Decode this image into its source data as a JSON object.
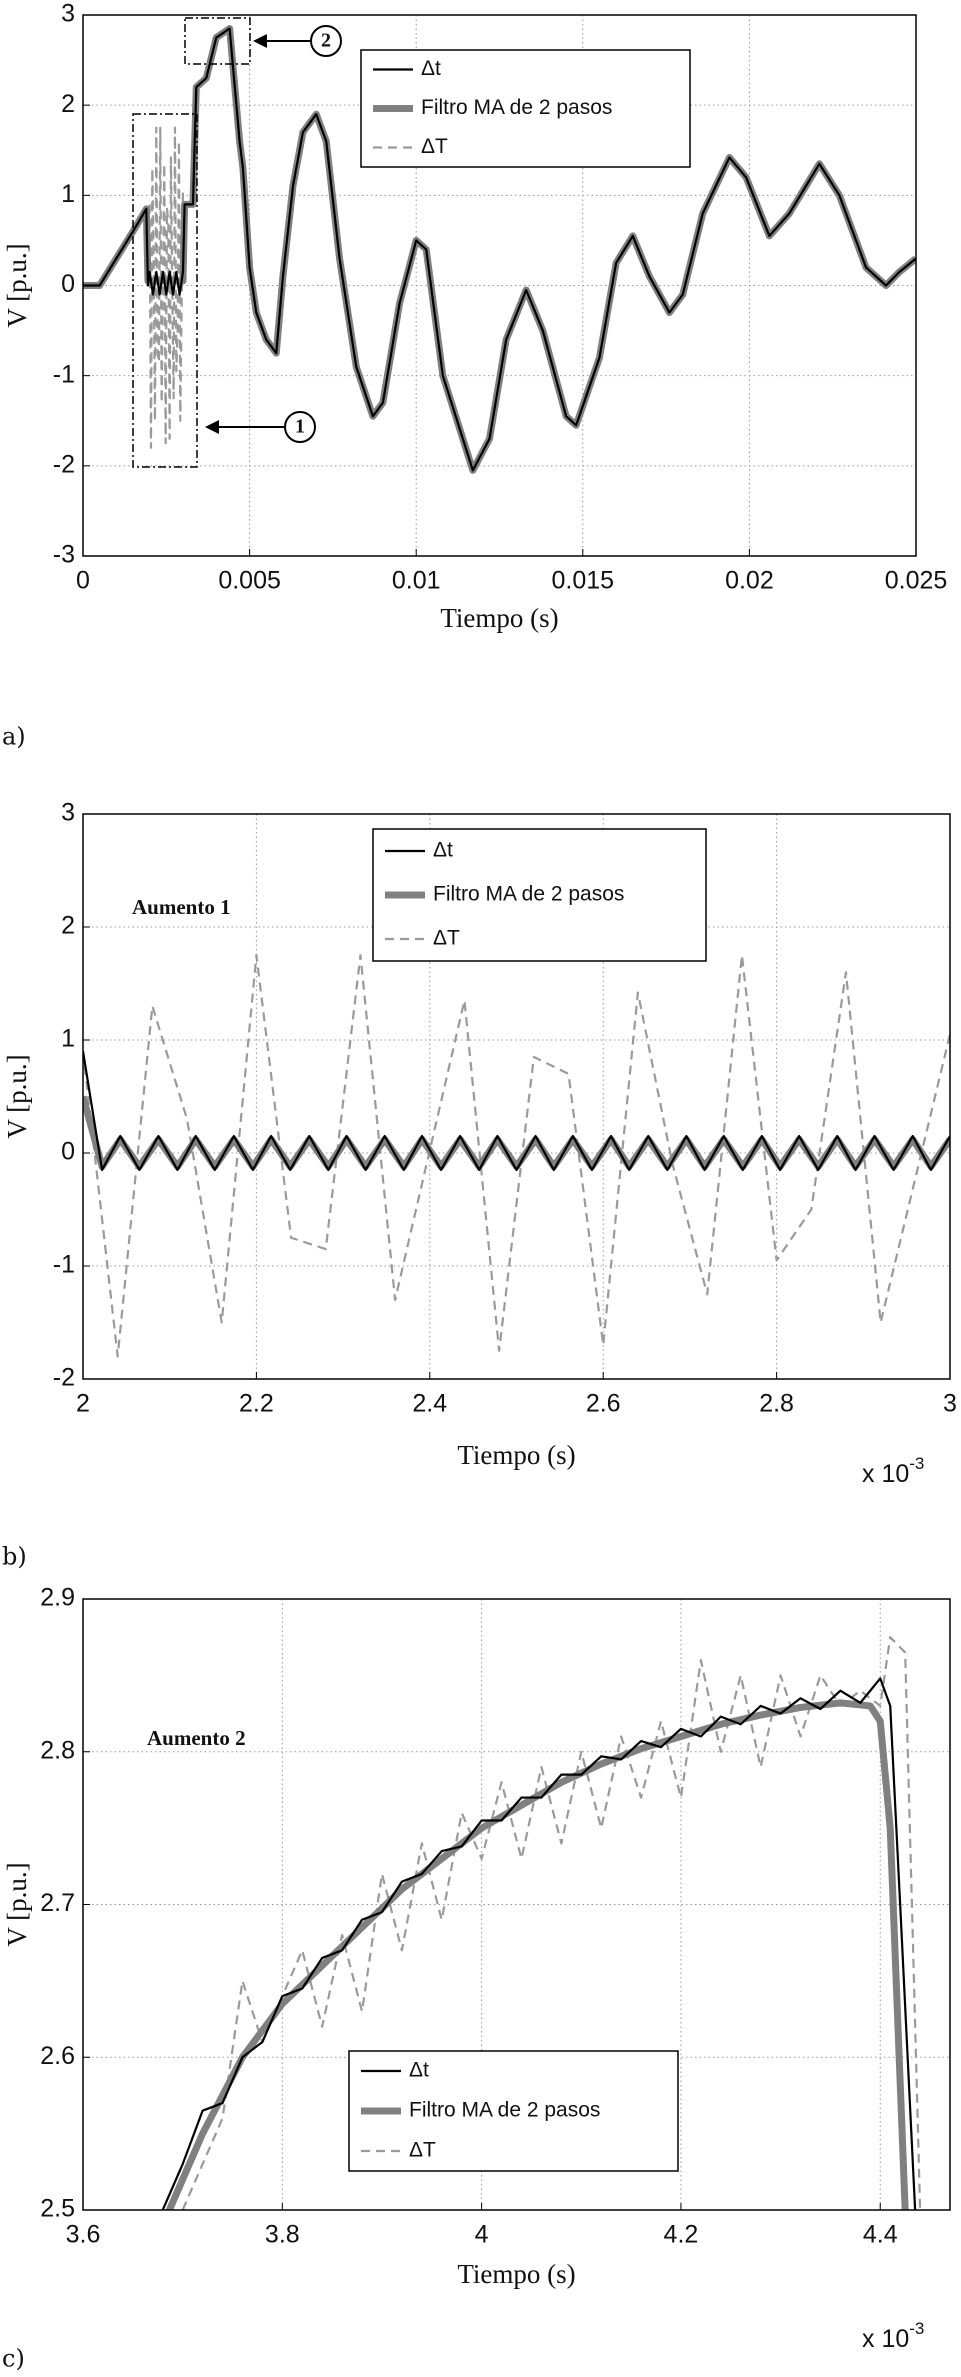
{
  "chart_data": [
    {
      "type": "line",
      "panel_label": "a)",
      "xlabel": "Tiempo  (s)",
      "ylabel": "V [p.u.]",
      "xlim": [
        0,
        0.025
      ],
      "ylim": [
        -3,
        3
      ],
      "xticks": [
        0,
        0.005,
        0.01,
        0.015,
        0.02,
        0.025
      ],
      "yticks": [
        -3,
        -2,
        -1,
        0,
        1,
        2,
        3
      ],
      "grid": true,
      "annotations": [
        "1",
        "2"
      ],
      "series": [
        {
          "name": "Δt",
          "color": "#000000",
          "style": "solid",
          "x": [
            0,
            0.0005,
            0.001,
            0.0015,
            0.0019,
            0.00195,
            0.002,
            0.0021,
            0.0022,
            0.0023,
            0.0024,
            0.0025,
            0.0026,
            0.0027,
            0.0028,
            0.0029,
            0.003,
            0.00305,
            0.0033,
            0.0034,
            0.0037,
            0.004,
            0.0044,
            0.0047,
            0.0048,
            0.005,
            0.0052,
            0.0055,
            0.0058,
            0.006,
            0.0063,
            0.0066,
            0.007,
            0.0073,
            0.0077,
            0.0082,
            0.0087,
            0.009,
            0.0095,
            0.01,
            0.0103,
            0.0108,
            0.0117,
            0.0122,
            0.0127,
            0.0133,
            0.0138,
            0.0145,
            0.0148,
            0.0155,
            0.016,
            0.0165,
            0.017,
            0.0176,
            0.018,
            0.0186,
            0.0194,
            0.0199,
            0.0206,
            0.0212,
            0.0221,
            0.0227,
            0.0235,
            0.0241,
            0.0245,
            0.025
          ],
          "values": [
            0,
            0,
            0.3,
            0.6,
            0.85,
            0.0,
            0.15,
            -0.1,
            0.15,
            -0.1,
            0.15,
            -0.1,
            0.15,
            -0.1,
            0.15,
            -0.1,
            0.15,
            0.9,
            0.9,
            2.2,
            2.3,
            2.75,
            2.85,
            1.6,
            1.3,
            0.2,
            -0.3,
            -0.6,
            -0.75,
            0.1,
            1.1,
            1.7,
            1.9,
            1.6,
            0.3,
            -0.9,
            -1.45,
            -1.3,
            -0.2,
            0.5,
            0.4,
            -1.0,
            -2.05,
            -1.7,
            -0.6,
            -0.05,
            -0.5,
            -1.45,
            -1.55,
            -0.8,
            0.25,
            0.55,
            0.1,
            -0.3,
            -0.1,
            0.8,
            1.42,
            1.2,
            0.55,
            0.8,
            1.35,
            1.0,
            0.2,
            0.0,
            0.15,
            0.3
          ]
        },
        {
          "name": "Filtro MA de 2 pasos",
          "color": "#808080",
          "style": "thick",
          "x": [
            0,
            0.0005,
            0.001,
            0.0015,
            0.0019,
            0.00195,
            0.003,
            0.00305,
            0.0033,
            0.0034,
            0.0037,
            0.004,
            0.0044,
            0.0047,
            0.0048,
            0.005,
            0.0052,
            0.0055,
            0.0058,
            0.006,
            0.0063,
            0.0066,
            0.007,
            0.0073,
            0.0077,
            0.0082,
            0.0087,
            0.009,
            0.0095,
            0.01,
            0.0103,
            0.0108,
            0.0117,
            0.0122,
            0.0127,
            0.0133,
            0.0138,
            0.0145,
            0.0148,
            0.0155,
            0.016,
            0.0165,
            0.017,
            0.0176,
            0.018,
            0.0186,
            0.0194,
            0.0199,
            0.0206,
            0.0212,
            0.0221,
            0.0227,
            0.0235,
            0.0241,
            0.0245,
            0.025
          ],
          "values": [
            0,
            0,
            0.3,
            0.6,
            0.85,
            0.05,
            0.05,
            0.9,
            0.9,
            2.2,
            2.3,
            2.75,
            2.85,
            1.6,
            1.3,
            0.2,
            -0.3,
            -0.6,
            -0.75,
            0.1,
            1.1,
            1.7,
            1.9,
            1.6,
            0.3,
            -0.9,
            -1.45,
            -1.3,
            -0.2,
            0.5,
            0.4,
            -1.0,
            -2.05,
            -1.7,
            -0.6,
            -0.05,
            -0.5,
            -1.45,
            -1.55,
            -0.8,
            0.25,
            0.55,
            0.1,
            -0.3,
            -0.1,
            0.8,
            1.42,
            1.2,
            0.55,
            0.8,
            1.35,
            1.0,
            0.2,
            0.0,
            0.15,
            0.3
          ]
        },
        {
          "name": "ΔT",
          "color": "#9a9a9a",
          "style": "dashed",
          "x": [
            0.002,
            0.00204,
            0.00208,
            0.00212,
            0.00216,
            0.0022,
            0.00224,
            0.00228,
            0.00232,
            0.00236,
            0.00244,
            0.00248,
            0.00252,
            0.00256,
            0.0026,
            0.00264,
            0.00268,
            0.00272,
            0.00276,
            0.0028,
            0.00284,
            0.00288,
            0.00292,
            0.003
          ],
          "values": [
            0.9,
            -1.8,
            1.3,
            0.3,
            -1.5,
            1.75,
            -0.75,
            -0.85,
            1.75,
            -1.3,
            1.35,
            -1.75,
            0.85,
            0.7,
            -1.7,
            1.42,
            -0.1,
            -1.25,
            1.75,
            -0.95,
            -0.5,
            1.6,
            -1.5,
            1.05
          ]
        }
      ]
    },
    {
      "type": "line",
      "panel_label": "b)",
      "xlabel": "Tiempo  (s)",
      "ylabel": "V [p.u.]",
      "note": "Aumento 1",
      "x_multiplier": {
        "base": "x 10",
        "exponent": "-3"
      },
      "xlim": [
        2,
        3
      ],
      "ylim": [
        -2,
        3
      ],
      "xticks": [
        2,
        2.2,
        2.4,
        2.6,
        2.8,
        3
      ],
      "yticks": [
        -2,
        -1,
        0,
        1,
        2,
        3
      ],
      "grid": true,
      "series": [
        {
          "name": "Δt",
          "color": "#000000",
          "style": "solid",
          "x": [
            2,
            2.022,
            2.043,
            2.065,
            2.087,
            2.109,
            2.13,
            2.152,
            2.174,
            2.196,
            2.217,
            2.239,
            2.261,
            2.283,
            2.304,
            2.326,
            2.348,
            2.37,
            2.391,
            2.413,
            2.435,
            2.457,
            2.478,
            2.5,
            2.522,
            2.543,
            2.565,
            2.587,
            2.609,
            2.63,
            2.652,
            2.674,
            2.696,
            2.717,
            2.739,
            2.761,
            2.783,
            2.804,
            2.826,
            2.848,
            2.87,
            2.891,
            2.913,
            2.935,
            2.957,
            2.978,
            3.0
          ],
          "values": [
            0.9,
            -0.15,
            0.15,
            -0.15,
            0.15,
            -0.15,
            0.15,
            -0.15,
            0.15,
            -0.15,
            0.15,
            -0.15,
            0.15,
            -0.15,
            0.15,
            -0.15,
            0.15,
            -0.15,
            0.15,
            -0.15,
            0.15,
            -0.15,
            0.15,
            -0.15,
            0.15,
            -0.15,
            0.15,
            -0.15,
            0.15,
            -0.15,
            0.15,
            -0.15,
            0.15,
            -0.15,
            0.15,
            -0.15,
            0.15,
            -0.15,
            0.15,
            -0.15,
            0.15,
            -0.15,
            0.15,
            -0.15,
            0.15,
            -0.15,
            0.15
          ]
        },
        {
          "name": "Filtro MA de 2 pasos",
          "color": "#808080",
          "style": "thick",
          "x": [
            2,
            2.022,
            2.043,
            2.065,
            2.087,
            2.109,
            2.13,
            2.152,
            2.174,
            2.196,
            2.217,
            2.239,
            2.261,
            2.283,
            2.304,
            2.326,
            2.348,
            2.37,
            2.391,
            2.413,
            2.435,
            2.457,
            2.478,
            2.5,
            2.522,
            2.543,
            2.565,
            2.587,
            2.609,
            2.63,
            2.652,
            2.674,
            2.696,
            2.717,
            2.739,
            2.761,
            2.783,
            2.804,
            2.826,
            2.848,
            2.87,
            2.891,
            2.913,
            2.935,
            2.957,
            2.978,
            3.0
          ],
          "values": [
            0.5,
            -0.12,
            0.12,
            -0.12,
            0.12,
            -0.12,
            0.12,
            -0.12,
            0.12,
            -0.12,
            0.12,
            -0.12,
            0.12,
            -0.12,
            0.12,
            -0.12,
            0.12,
            -0.12,
            0.12,
            -0.12,
            0.12,
            -0.12,
            0.12,
            -0.12,
            0.12,
            -0.12,
            0.12,
            -0.12,
            0.12,
            -0.12,
            0.12,
            -0.12,
            0.12,
            -0.12,
            0.12,
            -0.12,
            0.12,
            -0.12,
            0.12,
            -0.12,
            0.12,
            -0.12,
            0.12,
            -0.12,
            0.12,
            -0.12,
            0.12
          ]
        },
        {
          "name": "ΔT",
          "color": "#9a9a9a",
          "style": "dashed",
          "x": [
            2,
            2.04,
            2.08,
            2.12,
            2.16,
            2.2,
            2.24,
            2.28,
            2.32,
            2.36,
            2.44,
            2.48,
            2.52,
            2.56,
            2.6,
            2.64,
            2.68,
            2.72,
            2.76,
            2.8,
            2.84,
            2.88,
            2.92,
            3
          ],
          "values": [
            0.9,
            -1.8,
            1.3,
            0.3,
            -1.5,
            1.75,
            -0.75,
            -0.85,
            1.75,
            -1.3,
            1.35,
            -1.75,
            0.85,
            0.7,
            -1.7,
            1.42,
            -0.1,
            -1.25,
            1.75,
            -0.95,
            -0.5,
            1.6,
            -1.5,
            1.05
          ]
        }
      ]
    },
    {
      "type": "line",
      "panel_label": "c)",
      "xlabel": "Tiempo  (s)",
      "ylabel": "V [p.u.]",
      "note": "Aumento 2",
      "x_multiplier": {
        "base": "x 10",
        "exponent": "-3"
      },
      "xlim": [
        3.6,
        4.47
      ],
      "ylim": [
        2.5,
        2.9
      ],
      "xticks": [
        3.6,
        3.8,
        4,
        4.2,
        4.4
      ],
      "yticks": [
        2.5,
        2.6,
        2.7,
        2.8,
        2.9
      ],
      "grid": true,
      "series": [
        {
          "name": "Δt",
          "color": "#000000",
          "style": "solid",
          "x": [
            3.68,
            3.7,
            3.72,
            3.74,
            3.76,
            3.78,
            3.8,
            3.82,
            3.84,
            3.86,
            3.88,
            3.9,
            3.92,
            3.94,
            3.96,
            3.98,
            4.0,
            4.02,
            4.04,
            4.06,
            4.08,
            4.1,
            4.12,
            4.14,
            4.16,
            4.18,
            4.2,
            4.22,
            4.24,
            4.26,
            4.28,
            4.3,
            4.32,
            4.34,
            4.36,
            4.38,
            4.4,
            4.41,
            4.42,
            4.435
          ],
          "values": [
            2.5,
            2.53,
            2.565,
            2.57,
            2.6,
            2.61,
            2.64,
            2.645,
            2.665,
            2.67,
            2.69,
            2.695,
            2.715,
            2.72,
            2.735,
            2.738,
            2.755,
            2.755,
            2.77,
            2.77,
            2.785,
            2.785,
            2.797,
            2.795,
            2.807,
            2.803,
            2.815,
            2.81,
            2.823,
            2.818,
            2.83,
            2.825,
            2.835,
            2.828,
            2.84,
            2.832,
            2.848,
            2.83,
            2.7,
            2.5
          ]
        },
        {
          "name": "Filtro MA de 2 pasos",
          "color": "#808080",
          "style": "thick",
          "x": [
            3.68,
            3.72,
            3.76,
            3.8,
            3.84,
            3.88,
            3.92,
            3.96,
            4.0,
            4.04,
            4.08,
            4.12,
            4.16,
            4.2,
            4.24,
            4.28,
            4.32,
            4.36,
            4.39,
            4.4,
            4.41,
            4.425
          ],
          "values": [
            2.49,
            2.55,
            2.6,
            2.635,
            2.66,
            2.685,
            2.71,
            2.73,
            2.75,
            2.765,
            2.78,
            2.792,
            2.802,
            2.81,
            2.818,
            2.824,
            2.829,
            2.832,
            2.83,
            2.82,
            2.75,
            2.5
          ]
        },
        {
          "name": "ΔT",
          "color": "#9a9a9a",
          "style": "dashed",
          "x": [
            3.7,
            3.74,
            3.76,
            3.78,
            3.82,
            3.84,
            3.86,
            3.88,
            3.9,
            3.92,
            3.94,
            3.96,
            3.98,
            4.0,
            4.02,
            4.04,
            4.06,
            4.08,
            4.1,
            4.12,
            4.14,
            4.16,
            4.18,
            4.2,
            4.22,
            4.24,
            4.26,
            4.28,
            4.3,
            4.32,
            4.34,
            4.36,
            4.38,
            4.4,
            4.41,
            4.425,
            4.44
          ],
          "values": [
            2.5,
            2.56,
            2.65,
            2.61,
            2.67,
            2.62,
            2.68,
            2.63,
            2.72,
            2.67,
            2.74,
            2.69,
            2.76,
            2.73,
            2.78,
            2.73,
            2.79,
            2.74,
            2.8,
            2.75,
            2.81,
            2.77,
            2.82,
            2.77,
            2.86,
            2.8,
            2.85,
            2.79,
            2.85,
            2.81,
            2.85,
            2.83,
            2.84,
            2.83,
            2.875,
            2.865,
            2.5
          ]
        }
      ]
    }
  ]
}
